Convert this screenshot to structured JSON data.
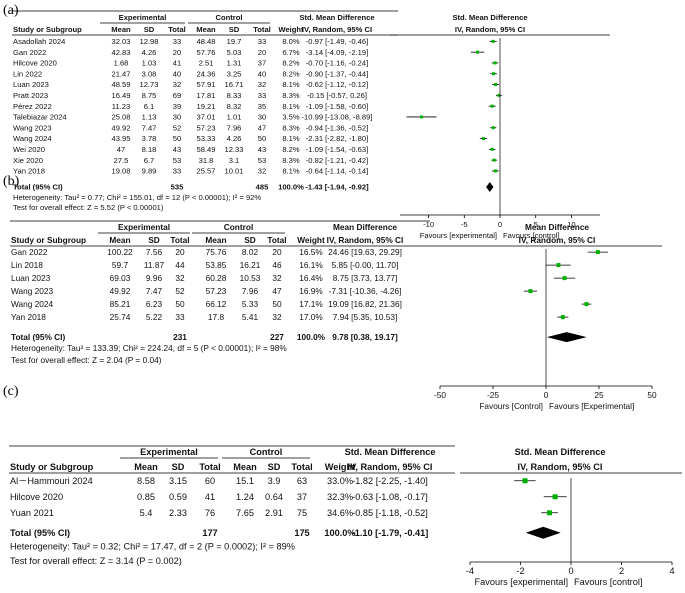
{
  "chart_data": [
    {
      "panel_label": "(a)",
      "type": "forest",
      "groups": {
        "experimental": "Experimental",
        "control": "Control"
      },
      "effect_header": "Std. Mean Difference",
      "effect_sub": "IV, Random, 95% CI",
      "columns": [
        "Study or Subgroup",
        "Mean",
        "SD",
        "Total",
        "Mean",
        "SD",
        "Total",
        "Weight",
        "Std. Mean Difference",
        "IV, Random, 95% CI"
      ],
      "studies": [
        {
          "name": "Asadollah 2024",
          "e_mean": "32.03",
          "e_sd": "12.98",
          "e_n": "33",
          "c_mean": "48.48",
          "c_sd": "19.7",
          "c_n": "33",
          "weight": "8.0%",
          "ci_text": "-0.97 [-1.49, -0.46]",
          "est": -0.97,
          "lo": -1.49,
          "hi": -0.46
        },
        {
          "name": "Gan 2022",
          "e_mean": "42.83",
          "e_sd": "4.26",
          "e_n": "20",
          "c_mean": "57.76",
          "c_sd": "5.03",
          "c_n": "20",
          "weight": "6.7%",
          "ci_text": "-3.14 [-4.09, -2.19]",
          "est": -3.14,
          "lo": -4.09,
          "hi": -2.19
        },
        {
          "name": "Hilcove 2020",
          "e_mean": "1.68",
          "e_sd": "1.03",
          "e_n": "41",
          "c_mean": "2.51",
          "c_sd": "1.31",
          "c_n": "37",
          "weight": "8.2%",
          "ci_text": "-0.70 [-1.16, -0.24]",
          "est": -0.7,
          "lo": -1.16,
          "hi": -0.24
        },
        {
          "name": "Lin 2022",
          "e_mean": "21.47",
          "e_sd": "3.08",
          "e_n": "40",
          "c_mean": "24.36",
          "c_sd": "3.25",
          "c_n": "40",
          "weight": "8.2%",
          "ci_text": "-0.90 [-1.37, -0.44]",
          "est": -0.9,
          "lo": -1.37,
          "hi": -0.44
        },
        {
          "name": "Luan 2023",
          "e_mean": "48.59",
          "e_sd": "12.73",
          "e_n": "32",
          "c_mean": "57.91",
          "c_sd": "16.71",
          "c_n": "32",
          "weight": "8.1%",
          "ci_text": "-0.62 [-1.12, -0.12]",
          "est": -0.62,
          "lo": -1.12,
          "hi": -0.12
        },
        {
          "name": "Pratt 2023",
          "e_mean": "16.49",
          "e_sd": "8.75",
          "e_n": "69",
          "c_mean": "17.81",
          "c_sd": "8.33",
          "c_n": "33",
          "weight": "8.3%",
          "ci_text": "-0.15 [-0.57, 0.26]",
          "est": -0.15,
          "lo": -0.57,
          "hi": 0.26
        },
        {
          "name": "Pérez 2022",
          "e_mean": "11.23",
          "e_sd": "6.1",
          "e_n": "39",
          "c_mean": "19.21",
          "c_sd": "8.32",
          "c_n": "35",
          "weight": "8.1%",
          "ci_text": "-1.09 [-1.58, -0.60]",
          "est": -1.09,
          "lo": -1.58,
          "hi": -0.6
        },
        {
          "name": "Talebiazar 2024",
          "e_mean": "25.08",
          "e_sd": "1.13",
          "e_n": "30",
          "c_mean": "37.01",
          "c_sd": "1.01",
          "c_n": "30",
          "weight": "3.5%",
          "ci_text": "-10.99 [-13.08, -8.89]",
          "est": -10.99,
          "lo": -13.08,
          "hi": -8.89
        },
        {
          "name": "Wang 2023",
          "e_mean": "49.92",
          "e_sd": "7.47",
          "e_n": "52",
          "c_mean": "57.23",
          "c_sd": "7.96",
          "c_n": "47",
          "weight": "8.3%",
          "ci_text": "-0.94 [-1.36, -0.52]",
          "est": -0.94,
          "lo": -1.36,
          "hi": -0.52
        },
        {
          "name": "Wang 2024",
          "e_mean": "43.95",
          "e_sd": "3.78",
          "e_n": "50",
          "c_mean": "53.33",
          "c_sd": "4.26",
          "c_n": "50",
          "weight": "8.1%",
          "ci_text": "-2.31 [-2.82, -1.80]",
          "est": -2.31,
          "lo": -2.82,
          "hi": -1.8
        },
        {
          "name": "Wei 2020",
          "e_mean": "47",
          "e_sd": "8.18",
          "e_n": "43",
          "c_mean": "58.49",
          "c_sd": "12.33",
          "c_n": "43",
          "weight": "8.2%",
          "ci_text": "-1.09 [-1.54, -0.63]",
          "est": -1.09,
          "lo": -1.54,
          "hi": -0.63
        },
        {
          "name": "Xie 2020",
          "e_mean": "27.5",
          "e_sd": "6.7",
          "e_n": "53",
          "c_mean": "31.8",
          "c_sd": "3.1",
          "c_n": "53",
          "weight": "8.3%",
          "ci_text": "-0.82 [-1.21, -0.42]",
          "est": -0.82,
          "lo": -1.21,
          "hi": -0.42
        },
        {
          "name": "Yan 2018",
          "e_mean": "19.08",
          "e_sd": "9.89",
          "e_n": "33",
          "c_mean": "25.57",
          "c_sd": "10.01",
          "c_n": "32",
          "weight": "8.1%",
          "ci_text": "-0.64 [-1.14, -0.14]",
          "est": -0.64,
          "lo": -1.14,
          "hi": -0.14
        }
      ],
      "total": {
        "name": "Total (95% CI)",
        "e_n": "535",
        "c_n": "485",
        "weight": "100.0%",
        "ci_text": "-1.43 [-1.94, -0.92]",
        "est": -1.43,
        "lo": -1.94,
        "hi": -0.92
      },
      "heterogeneity": "Heterogeneity: Tau² = 0.77; Chi² = 155.01, df = 12 (P < 0.00001); I² = 92%",
      "overall_effect": "Test for overall effect: Z = 5.52 (P < 0.00001)",
      "xlim": [
        -14,
        14
      ],
      "ticks": [
        -10,
        -5,
        0,
        5,
        10
      ],
      "favours_left": "Favours [experimental]",
      "favours_right": "Favours [control]"
    },
    {
      "panel_label": "(b)",
      "type": "forest",
      "groups": {
        "experimental": "Experimental",
        "control": "Control"
      },
      "effect_header": "Mean Difference",
      "effect_sub": "IV, Random, 95% CI",
      "columns": [
        "Study or Subgroup",
        "Mean",
        "SD",
        "Total",
        "Mean",
        "SD",
        "Total",
        "Weight",
        "Mean Difference",
        "IV, Random, 95% CI"
      ],
      "studies": [
        {
          "name": "Gan 2022",
          "e_mean": "100.22",
          "e_sd": "7.56",
          "e_n": "20",
          "c_mean": "75.76",
          "c_sd": "8.02",
          "c_n": "20",
          "weight": "16.5%",
          "ci_text": "24.46 [19.63, 29.29]",
          "est": 24.46,
          "lo": 19.63,
          "hi": 29.29
        },
        {
          "name": "Lin 2018",
          "e_mean": "59.7",
          "e_sd": "11.87",
          "e_n": "44",
          "c_mean": "53.85",
          "c_sd": "16.21",
          "c_n": "46",
          "weight": "16.1%",
          "ci_text": "5.85 [-0.00, 11.70]",
          "est": 5.85,
          "lo": 0.0,
          "hi": 11.7
        },
        {
          "name": "Luan 2023",
          "e_mean": "69.03",
          "e_sd": "9.96",
          "e_n": "32",
          "c_mean": "60.28",
          "c_sd": "10.53",
          "c_n": "32",
          "weight": "16.4%",
          "ci_text": "8.75 [3.73, 13.77]",
          "est": 8.75,
          "lo": 3.73,
          "hi": 13.77
        },
        {
          "name": "Wang 2023",
          "e_mean": "49.92",
          "e_sd": "7.47",
          "e_n": "52",
          "c_mean": "57.23",
          "c_sd": "7.96",
          "c_n": "47",
          "weight": "16.9%",
          "ci_text": "-7.31 [-10.36, -4.26]",
          "est": -7.31,
          "lo": -10.36,
          "hi": -4.26
        },
        {
          "name": "Wang 2024",
          "e_mean": "85.21",
          "e_sd": "6.23",
          "e_n": "50",
          "c_mean": "66.12",
          "c_sd": "5.33",
          "c_n": "50",
          "weight": "17.1%",
          "ci_text": "19.09 [16.82, 21.36]",
          "est": 19.09,
          "lo": 16.82,
          "hi": 21.36
        },
        {
          "name": "Yan 2018",
          "e_mean": "25.74",
          "e_sd": "5.22",
          "e_n": "33",
          "c_mean": "17.8",
          "c_sd": "5.41",
          "c_n": "32",
          "weight": "17.0%",
          "ci_text": "7.94 [5.35, 10.53]",
          "est": 7.94,
          "lo": 5.35,
          "hi": 10.53
        }
      ],
      "total": {
        "name": "Total (95% CI)",
        "e_n": "231",
        "c_n": "227",
        "weight": "100.0%",
        "ci_text": "9.78 [0.38, 19.17]",
        "est": 9.78,
        "lo": 0.38,
        "hi": 19.17
      },
      "heterogeneity": "Heterogeneity: Tau² = 133.39; Chi² = 224.24, df = 5 (P < 0.00001); I² = 98%",
      "overall_effect": "Test for overall effect: Z = 2.04 (P = 0.04)",
      "xlim": [
        -50,
        50
      ],
      "ticks": [
        -50,
        -25,
        0,
        25,
        50
      ],
      "favours_left": "Favours [Control]",
      "favours_right": "Favours [Experimental]"
    },
    {
      "panel_label": "(c)",
      "type": "forest",
      "groups": {
        "experimental": "Experimental",
        "control": "Control"
      },
      "effect_header": "Std. Mean Difference",
      "effect_sub": "IV, Random, 95% CI",
      "columns": [
        "Study or Subgroup",
        "Mean",
        "SD",
        "Total",
        "Mean",
        "SD",
        "Total",
        "Weight",
        "Std. Mean Difference",
        "IV, Random, 95% CI"
      ],
      "studies": [
        {
          "name": "Al－Hammouri 2024",
          "e_mean": "8.58",
          "e_sd": "3.15",
          "e_n": "60",
          "c_mean": "15.1",
          "c_sd": "3.9",
          "c_n": "63",
          "weight": "33.0%",
          "ci_text": "-1.82 [-2.25, -1.40]",
          "est": -1.82,
          "lo": -2.25,
          "hi": -1.4
        },
        {
          "name": "Hilcove 2020",
          "e_mean": "0.85",
          "e_sd": "0.59",
          "e_n": "41",
          "c_mean": "1.24",
          "c_sd": "0.64",
          "c_n": "37",
          "weight": "32.3%",
          "ci_text": "-0.63 [-1.08, -0.17]",
          "est": -0.63,
          "lo": -1.08,
          "hi": -0.17
        },
        {
          "name": "Yuan 2021",
          "e_mean": "5.4",
          "e_sd": "2.33",
          "e_n": "76",
          "c_mean": "7.65",
          "c_sd": "2.91",
          "c_n": "75",
          "weight": "34.6%",
          "ci_text": "-0.85 [-1.18, -0.52]",
          "est": -0.85,
          "lo": -1.18,
          "hi": -0.52
        }
      ],
      "total": {
        "name": "Total (95% CI)",
        "e_n": "177",
        "c_n": "175",
        "weight": "100.0%",
        "ci_text": "-1.10 [-1.79, -0.41]",
        "est": -1.1,
        "lo": -1.79,
        "hi": -0.41
      },
      "heterogeneity": "Heterogeneity: Tau² = 0.32; Chi² = 17.47, df = 2 (P = 0.0002); I² = 89%",
      "overall_effect": "Test for overall effect: Z = 3.14 (P = 0.002)",
      "xlim": [
        -4,
        4
      ],
      "ticks": [
        -4,
        -2,
        0,
        2,
        4
      ],
      "favours_left": "Favours [experimental]",
      "favours_right": "Favours [control]"
    }
  ],
  "colors": {
    "marker": "#00b000",
    "line": "#000000",
    "rule": "#000000"
  }
}
